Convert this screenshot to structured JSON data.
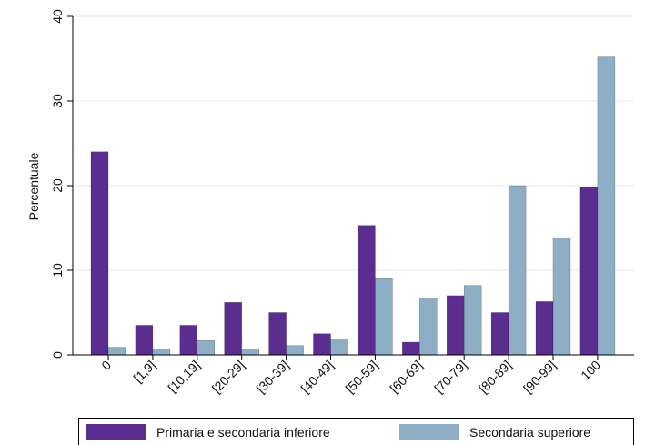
{
  "chart_data": {
    "type": "bar",
    "title": "",
    "xlabel": "",
    "ylabel": "Percentuale",
    "ylim": [
      0,
      40
    ],
    "yticks": [
      0,
      10,
      20,
      30,
      40
    ],
    "grid": true,
    "legend_position": "bottom",
    "categories": [
      "0",
      "[1,9]",
      "[10,19]",
      "[20-29]",
      "[30-39]",
      "[40-49]",
      "[50-59]",
      "[60-69]",
      "[70-79]",
      "[80-89]",
      "[90-99]",
      "100"
    ],
    "series": [
      {
        "name": "Primaria e secondaria inferiore",
        "color": "#5b2d8e",
        "values": [
          24.0,
          3.5,
          3.5,
          6.2,
          5.0,
          2.5,
          15.3,
          1.5,
          7.0,
          5.0,
          6.3,
          19.8
        ]
      },
      {
        "name": "Secondaria superiore",
        "color": "#8eaec6",
        "values": [
          0.9,
          0.7,
          1.7,
          0.7,
          1.1,
          1.9,
          9.0,
          6.7,
          8.2,
          20.0,
          13.8,
          35.2
        ]
      }
    ]
  }
}
